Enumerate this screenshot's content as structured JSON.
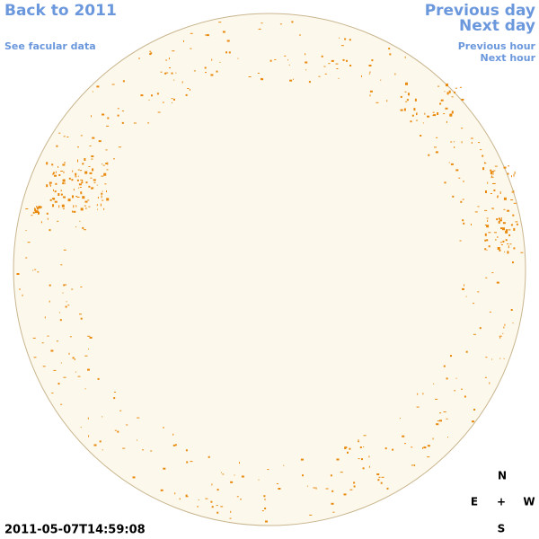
{
  "nav": {
    "back": "Back to 2011",
    "facular": "See facular data",
    "previous_day": "Previous day",
    "next_day": "Next day",
    "previous_hour": "Previous hour",
    "next_hour": "Next hour"
  },
  "timestamp": "2011-05-07T14:59:08",
  "compass": {
    "north": "N",
    "east": "E",
    "center": "+",
    "west": "W",
    "south": "S"
  }
}
